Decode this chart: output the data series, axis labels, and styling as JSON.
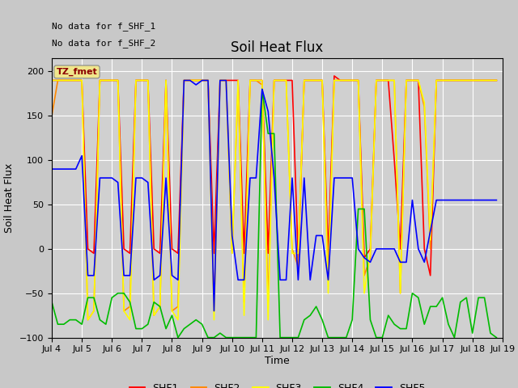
{
  "title": "Soil Heat Flux",
  "ylabel": "Soil Heat Flux",
  "xlabel": "Time",
  "no_data_text_1": "No data for f_SHF_1",
  "no_data_text_2": "No data for f_SHF_2",
  "tz_label": "TZ_fmet",
  "ylim": [
    -100,
    215
  ],
  "yticks": [
    -100,
    -50,
    0,
    50,
    100,
    150,
    200
  ],
  "series_colors": {
    "SHF1": "#ff0000",
    "SHF2": "#ff8800",
    "SHF3": "#ffff00",
    "SHF4": "#00bb00",
    "SHF5": "#0000ff"
  },
  "legend_colors": [
    "#ff0000",
    "#ff8800",
    "#ffff00",
    "#00bb00",
    "#0000ff"
  ],
  "legend_labels": [
    "SHF1",
    "SHF2",
    "SHF3",
    "SHF4",
    "SHF5"
  ],
  "xtick_labels": [
    "Jul 4",
    "Jul 5",
    "Jul 6",
    "Jul 7",
    "Jul 8",
    "Jul 9",
    "Jul 10",
    "Jul 11",
    "Jul 12",
    "Jul 13",
    "Jul 14",
    "Jul 15",
    "Jul 16",
    "Jul 17",
    "Jul 18",
    "Jul 19"
  ],
  "background_color": "#c8c8c8",
  "plot_bg_color": "#d0d0d0",
  "grid_color": "#ffffff",
  "linewidth": 1.2,
  "xtick_positions": [
    4,
    5,
    6,
    7,
    8,
    9,
    10,
    11,
    12,
    13,
    14,
    15,
    16,
    17,
    18,
    19
  ],
  "x_days": [
    4.0,
    4.2,
    4.4,
    4.6,
    4.8,
    5.0,
    5.2,
    5.4,
    5.6,
    5.8,
    6.0,
    6.2,
    6.4,
    6.6,
    6.8,
    7.0,
    7.2,
    7.4,
    7.6,
    7.8,
    8.0,
    8.2,
    8.4,
    8.6,
    8.8,
    9.0,
    9.2,
    9.4,
    9.6,
    9.8,
    10.0,
    10.2,
    10.4,
    10.6,
    10.8,
    11.0,
    11.2,
    11.4,
    11.6,
    11.8,
    12.0,
    12.2,
    12.4,
    12.6,
    12.8,
    13.0,
    13.2,
    13.4,
    13.6,
    13.8,
    14.0,
    14.2,
    14.4,
    14.6,
    14.8,
    15.0,
    15.2,
    15.4,
    15.6,
    15.8,
    16.0,
    16.2,
    16.4,
    16.6,
    16.8,
    17.0,
    17.2,
    17.4,
    17.6,
    17.8,
    18.0,
    18.2,
    18.4,
    18.6,
    18.8
  ],
  "SHF1": [
    190,
    190,
    190,
    190,
    190,
    190,
    0,
    -5,
    190,
    190,
    190,
    190,
    0,
    -5,
    190,
    190,
    190,
    0,
    -5,
    190,
    0,
    -5,
    190,
    190,
    190,
    190,
    190,
    -5,
    190,
    190,
    190,
    190,
    -5,
    190,
    190,
    190,
    -5,
    190,
    190,
    190,
    190,
    -10,
    190,
    190,
    190,
    190,
    -5,
    195,
    190,
    190,
    190,
    190,
    -10,
    0,
    190,
    190,
    190,
    100,
    0,
    190,
    190,
    190,
    0,
    -30,
    190,
    190,
    190,
    190,
    190,
    190,
    190,
    190,
    190,
    190,
    190
  ],
  "SHF2": [
    150,
    190,
    190,
    190,
    190,
    190,
    -80,
    -70,
    190,
    190,
    190,
    190,
    -70,
    -65,
    190,
    190,
    190,
    -75,
    -65,
    190,
    -70,
    -65,
    190,
    190,
    190,
    190,
    190,
    -65,
    190,
    190,
    -5,
    185,
    -60,
    190,
    190,
    185,
    -60,
    190,
    190,
    190,
    0,
    -20,
    190,
    190,
    190,
    190,
    -30,
    190,
    190,
    190,
    190,
    190,
    -30,
    -10,
    190,
    190,
    190,
    190,
    -50,
    190,
    190,
    190,
    160,
    0,
    190,
    190,
    190,
    190,
    190,
    190,
    190,
    190,
    190,
    190,
    190
  ],
  "SHF3": [
    190,
    190,
    190,
    190,
    190,
    190,
    -80,
    -70,
    190,
    190,
    190,
    190,
    -70,
    -80,
    190,
    190,
    190,
    -75,
    -65,
    190,
    -70,
    -80,
    190,
    190,
    190,
    190,
    190,
    -80,
    190,
    190,
    -5,
    190,
    -75,
    190,
    190,
    190,
    -80,
    190,
    190,
    190,
    -5,
    -5,
    190,
    190,
    190,
    190,
    -50,
    190,
    190,
    190,
    190,
    190,
    -50,
    -5,
    190,
    190,
    190,
    190,
    -50,
    190,
    190,
    190,
    165,
    10,
    190,
    190,
    190,
    190,
    190,
    190,
    190,
    190,
    190,
    190,
    190
  ],
  "SHF4": [
    -60,
    -85,
    -85,
    -80,
    -80,
    -85,
    -55,
    -55,
    -80,
    -85,
    -55,
    -50,
    -50,
    -60,
    -90,
    -90,
    -85,
    -60,
    -65,
    -90,
    -75,
    -100,
    -90,
    -85,
    -80,
    -85,
    -100,
    -100,
    -95,
    -100,
    -100,
    -100,
    -100,
    -100,
    -100,
    180,
    130,
    130,
    -100,
    -100,
    -100,
    -100,
    -80,
    -75,
    -65,
    -80,
    -100,
    -100,
    -100,
    -100,
    -80,
    45,
    45,
    -80,
    -100,
    -100,
    -75,
    -85,
    -90,
    -90,
    -50,
    -55,
    -85,
    -65,
    -65,
    -55,
    -85,
    -100,
    -60,
    -55,
    -95,
    -55,
    -55,
    -95,
    -100
  ],
  "SHF5": [
    90,
    90,
    90,
    90,
    90,
    105,
    -30,
    -30,
    80,
    80,
    80,
    75,
    -30,
    -30,
    80,
    80,
    75,
    -35,
    -30,
    80,
    -30,
    -35,
    190,
    190,
    185,
    190,
    190,
    -70,
    190,
    190,
    15,
    -35,
    -35,
    80,
    80,
    180,
    155,
    80,
    -35,
    -35,
    80,
    -35,
    80,
    -35,
    15,
    15,
    -35,
    80,
    80,
    80,
    80,
    0,
    -10,
    -15,
    0,
    0,
    0,
    0,
    -15,
    -15,
    55,
    0,
    -15,
    20,
    55,
    55,
    55,
    55,
    55,
    55,
    55,
    55,
    55,
    55,
    55
  ]
}
